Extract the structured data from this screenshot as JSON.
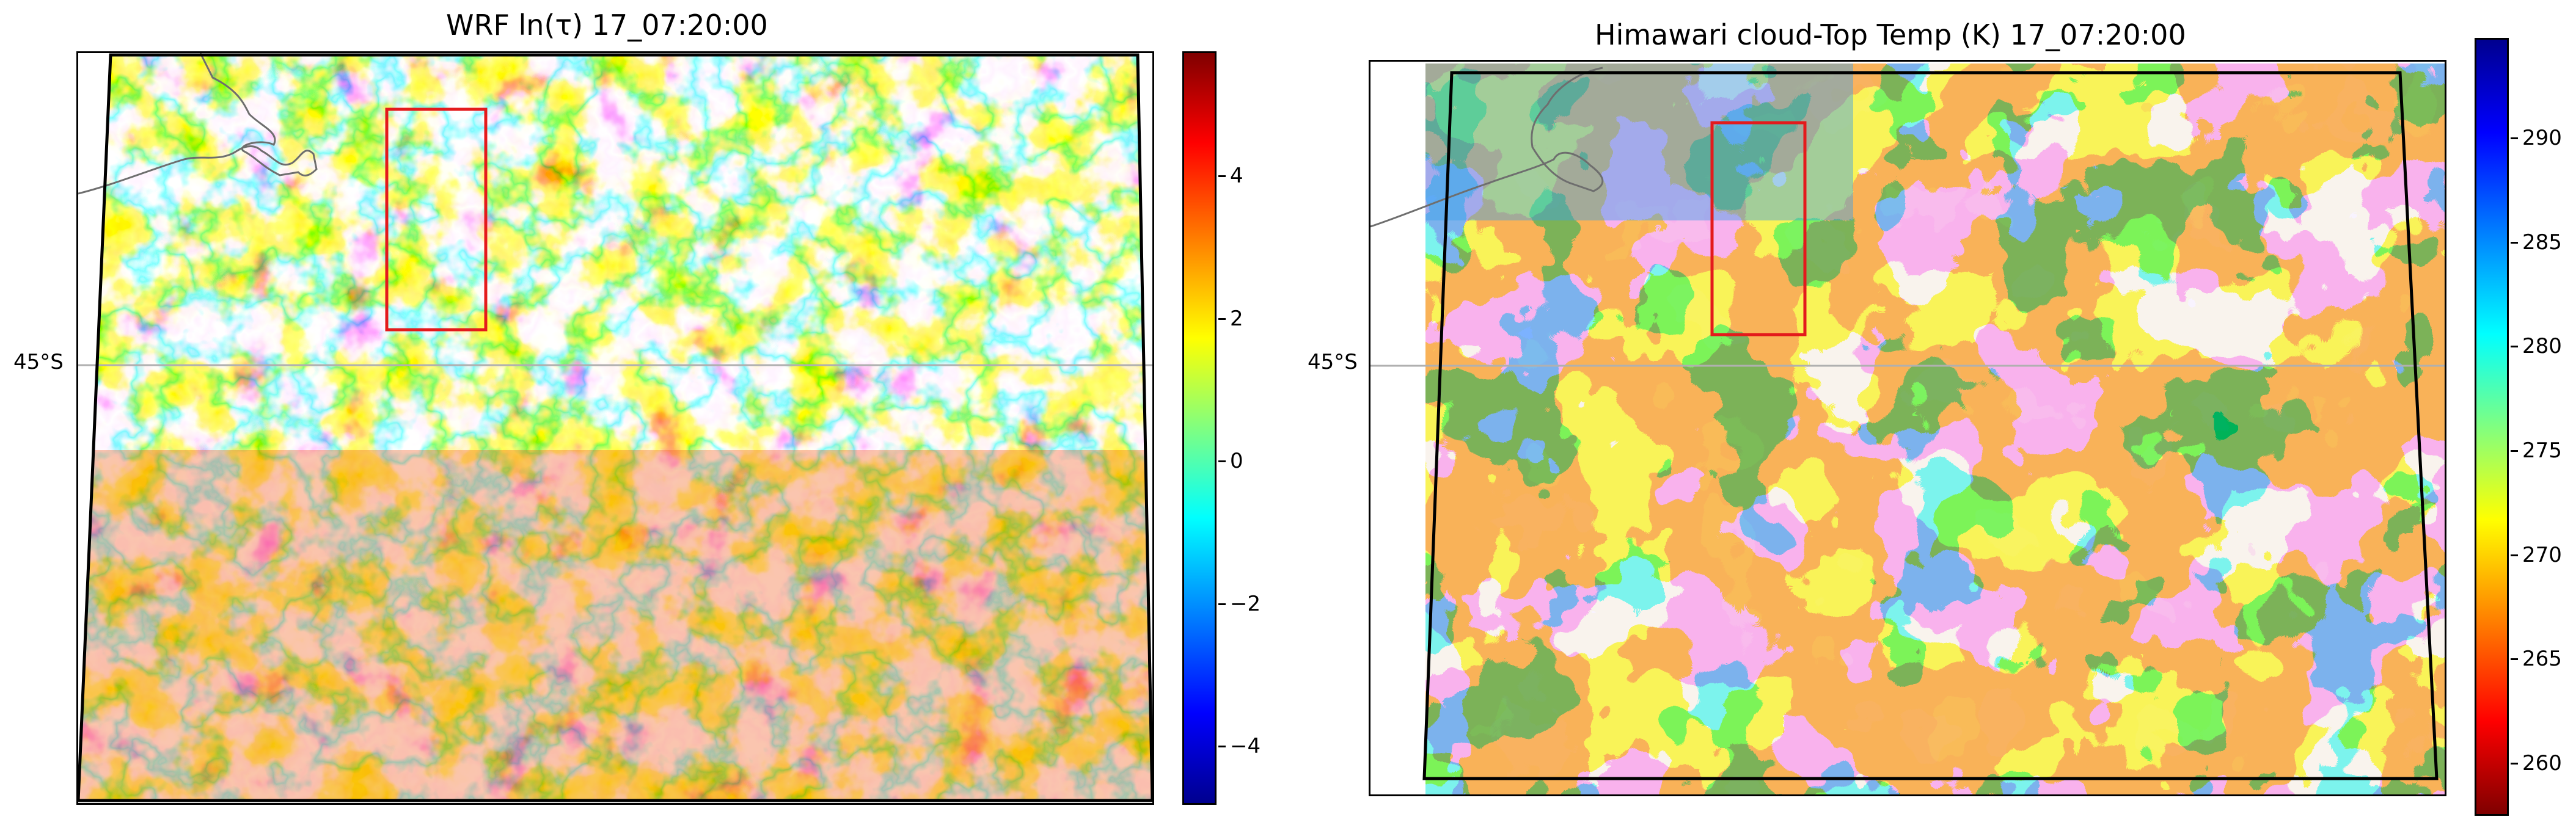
{
  "panels": [
    {
      "title": "WRF ln(τ) 17_07:20:00",
      "lat_label": "45°S",
      "colorbar": {
        "ticks": [
          "4",
          "2",
          "0",
          "−2",
          "−4"
        ],
        "colormap": "jet"
      },
      "field": "optical-depth"
    },
    {
      "title": "Himawari cloud-Top Temp (K) 17_07:20:00",
      "lat_label": "45°S",
      "colorbar": {
        "ticks": [
          "290",
          "285",
          "280",
          "275",
          "270",
          "265",
          "260"
        ],
        "colormap": "jet"
      },
      "field": "cloud-top-temperature"
    }
  ],
  "colors": {
    "region_box": "#e41a1c",
    "domain_outline": "#000000",
    "coastline": "#6e6e6e",
    "gridline": "#b0b0b0"
  }
}
